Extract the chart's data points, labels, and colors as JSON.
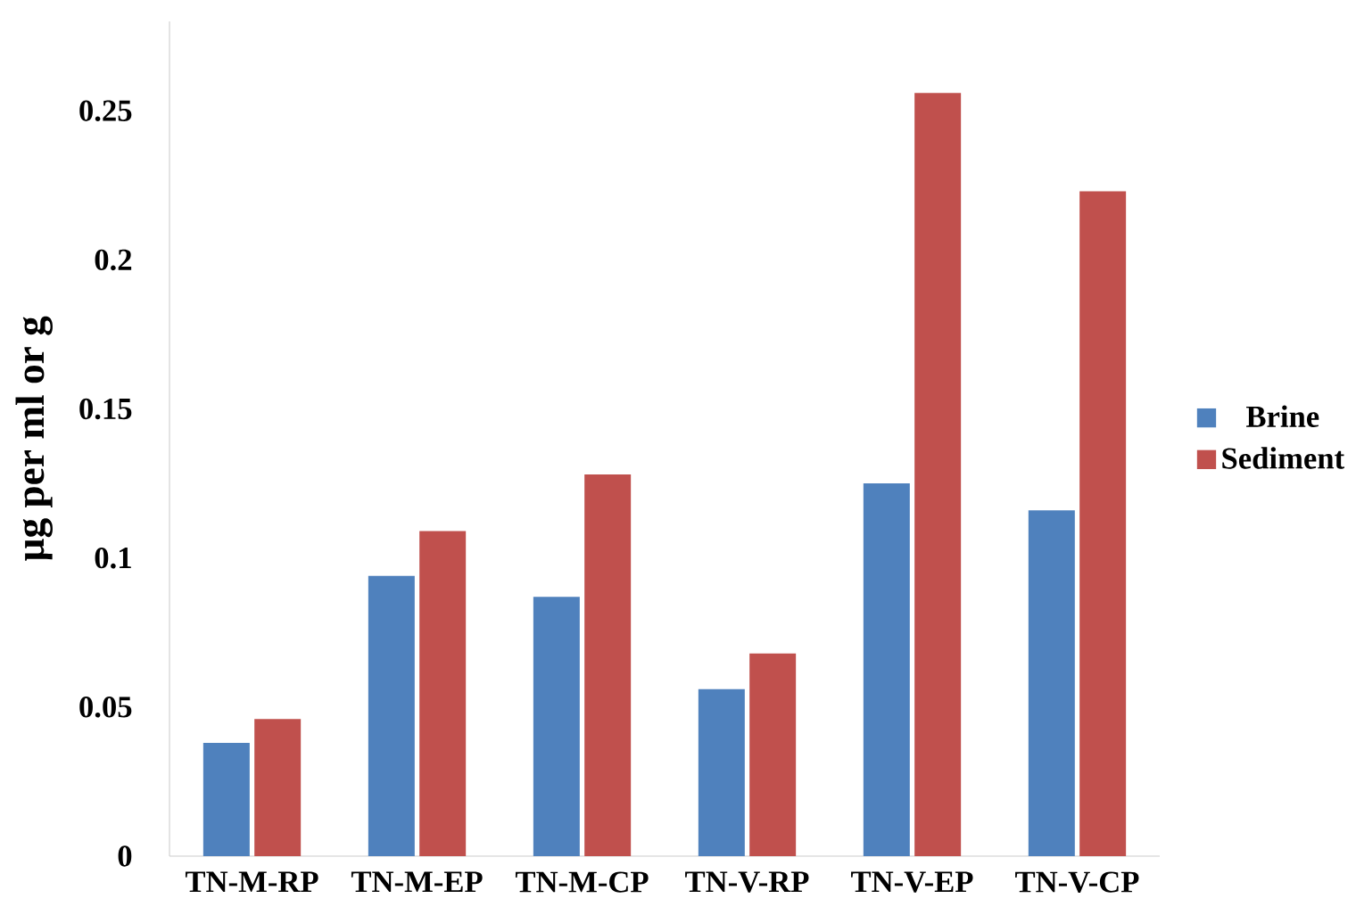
{
  "chart_data": {
    "type": "bar",
    "ylabel": "µg per ml or g",
    "categories": [
      "TN-M-RP",
      "TN-M-EP",
      "TN-M-CP",
      "TN-V-RP",
      "TN-V-EP",
      "TN-V-CP"
    ],
    "series": [
      {
        "name": "Brine",
        "color": "#4f81bd",
        "values": [
          0.038,
          0.094,
          0.087,
          0.056,
          0.125,
          0.116
        ]
      },
      {
        "name": "Sediment",
        "color": "#c0504d",
        "values": [
          0.046,
          0.109,
          0.128,
          0.068,
          0.256,
          0.223
        ]
      }
    ],
    "ylim": [
      0,
      0.28
    ],
    "yticks": [
      0,
      0.05,
      0.1,
      0.15,
      0.2,
      0.25
    ],
    "grid": false,
    "legend": "right"
  }
}
